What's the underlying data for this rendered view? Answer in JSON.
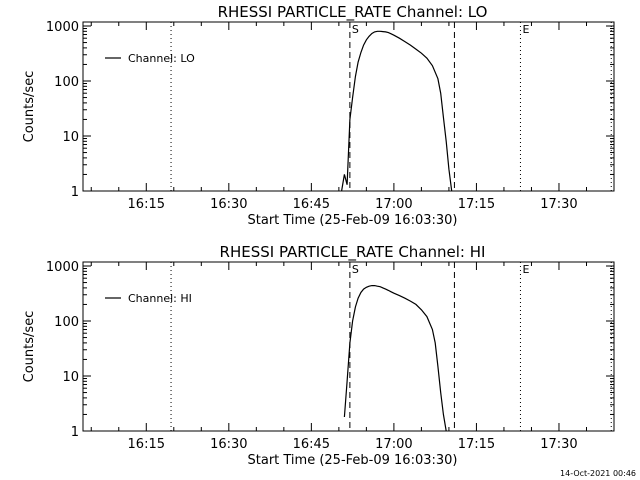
{
  "footer_timestamp": "14-Oct-2021 00:46",
  "chart_data": [
    {
      "type": "line",
      "title": "RHESSI PARTICLE_RATE Channel: LO",
      "xlabel": "Start Time (25-Feb-09 16:03:30)",
      "ylabel": "Counts/sec",
      "yscale": "log",
      "ylim": [
        1,
        1000
      ],
      "yticks": [
        "1",
        "10",
        "100",
        "1000"
      ],
      "xlim": [
        "16:03:30",
        "17:40:00"
      ],
      "xticks": [
        "16:15",
        "16:30",
        "16:45",
        "17:00",
        "17:15",
        "17:30"
      ],
      "legend": "top-left",
      "series": [
        {
          "name": "Channel: LO",
          "x": [
            "16:50:30",
            "16:51:00",
            "16:51:30",
            "16:52:00",
            "16:52:30",
            "16:53:00",
            "16:53:30",
            "16:54:00",
            "16:54:30",
            "16:55:00",
            "16:55:30",
            "16:56:00",
            "16:56:30",
            "16:57:00",
            "16:57:30",
            "16:58:00",
            "16:58:30",
            "16:59:00",
            "16:59:30",
            "17:00:00",
            "17:01:00",
            "17:02:00",
            "17:03:00",
            "17:04:00",
            "17:05:00",
            "17:06:00",
            "17:07:00",
            "17:08:00",
            "17:08:30",
            "17:09:00",
            "17:09:30",
            "17:10:00",
            "17:10:30"
          ],
          "y": [
            1,
            2,
            1.3,
            20,
            50,
            120,
            220,
            330,
            450,
            560,
            650,
            730,
            780,
            800,
            800,
            790,
            780,
            760,
            720,
            680,
            600,
            520,
            450,
            380,
            320,
            260,
            190,
            110,
            60,
            22,
            8,
            2.5,
            1
          ]
        }
      ],
      "vlines": [
        {
          "time": "16:52:00",
          "style": "dashed",
          "label": "S"
        },
        {
          "time": "17:11:00",
          "style": "dashed",
          "label": ""
        },
        {
          "time": "16:19:30",
          "style": "dotted",
          "label": ""
        },
        {
          "time": "17:23:00",
          "style": "dotted",
          "label": "E"
        },
        {
          "time": "17:39:30",
          "style": "dotted",
          "label": ""
        }
      ]
    },
    {
      "type": "line",
      "title": "RHESSI PARTICLE_RATE Channel: HI",
      "xlabel": "Start Time (25-Feb-09 16:03:30)",
      "ylabel": "Counts/sec",
      "yscale": "log",
      "ylim": [
        1,
        1000
      ],
      "yticks": [
        "1",
        "10",
        "100",
        "1000"
      ],
      "xlim": [
        "16:03:30",
        "17:40:00"
      ],
      "xticks": [
        "16:15",
        "16:30",
        "16:45",
        "17:00",
        "17:15",
        "17:30"
      ],
      "legend": "top-left",
      "series": [
        {
          "name": "Channel: HI",
          "x": [
            "16:51:00",
            "16:51:30",
            "16:52:00",
            "16:52:30",
            "16:53:00",
            "16:53:30",
            "16:54:00",
            "16:54:30",
            "16:55:00",
            "16:55:30",
            "16:56:00",
            "16:56:30",
            "16:57:00",
            "16:57:30",
            "16:58:00",
            "16:58:30",
            "16:59:00",
            "16:59:30",
            "17:00:00",
            "17:01:00",
            "17:02:00",
            "17:03:00",
            "17:04:00",
            "17:05:00",
            "17:06:00",
            "17:07:00",
            "17:07:30",
            "17:08:00",
            "17:08:30",
            "17:09:00",
            "17:09:30"
          ],
          "y": [
            1.8,
            8,
            40,
            100,
            180,
            260,
            330,
            380,
            410,
            430,
            440,
            440,
            430,
            420,
            400,
            380,
            360,
            340,
            320,
            290,
            260,
            230,
            200,
            160,
            120,
            70,
            40,
            15,
            5,
            2,
            1
          ]
        }
      ],
      "vlines": [
        {
          "time": "16:52:00",
          "style": "dashed",
          "label": "S"
        },
        {
          "time": "17:11:00",
          "style": "dashed",
          "label": ""
        },
        {
          "time": "16:19:30",
          "style": "dotted",
          "label": ""
        },
        {
          "time": "17:23:00",
          "style": "dotted",
          "label": "E"
        },
        {
          "time": "17:39:30",
          "style": "dotted",
          "label": ""
        }
      ]
    }
  ]
}
